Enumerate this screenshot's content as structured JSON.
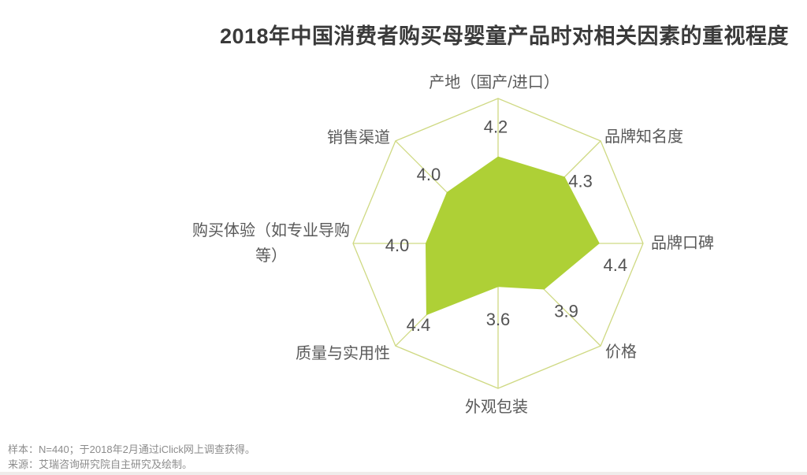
{
  "title": "2018年中国消费者购买母婴童产品时对相关因素的重视程度",
  "footer": {
    "sample_note": "样本：N=440；于2018年2月通过iClick网上调查获得。",
    "source_note": "来源：艾瑞咨询研究院自主研究及绘制。"
  },
  "chart_data": {
    "type": "radar",
    "title": "2018年中国消费者购买母婴童产品时对相关因素的重视程度",
    "categories": [
      "产地（国产/进口）",
      "品牌知名度",
      "品牌口碑",
      "价格",
      "外观包装",
      "质量与实用性",
      "购买体验（如专业导购等）",
      "销售渠道"
    ],
    "values": [
      4.2,
      4.3,
      4.4,
      3.9,
      3.6,
      4.4,
      4.0,
      4.0
    ],
    "value_labels": [
      "4.2",
      "4.3",
      "4.4",
      "3.9",
      "3.6",
      "4.4",
      "4.0",
      "4.0"
    ],
    "axis_range": {
      "min": 3,
      "max": 5
    },
    "grid": {
      "shape": "octagon",
      "rings": 1,
      "spokes": true
    },
    "legend": "none",
    "colors": {
      "fill": "#aed036",
      "grid_line": "#cfd983",
      "axis_label": "#595959",
      "value_label": "#525252"
    }
  }
}
